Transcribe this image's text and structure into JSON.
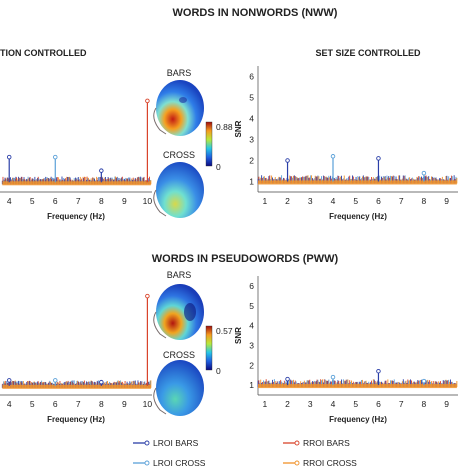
{
  "header_top": "WORDS IN NONWORDS (NWW)",
  "header_bottom": "WORDS IN PSEUDOWORDS (PWW)",
  "sub_left": "TION CONTROLLED",
  "sub_right": "SET SIZE CONTROLLED",
  "head_labels": {
    "bars": "BARS",
    "cross": "CROSS"
  },
  "colorbar_top": {
    "max": "0.88",
    "min": "0"
  },
  "colorbar_bottom": {
    "max": "0.57",
    "min": "0"
  },
  "legend": [
    {
      "label": "LROI BARS",
      "color": "#2b3fa8"
    },
    {
      "label": "RROI BARS",
      "color": "#d9442b"
    },
    {
      "label": "LROI CROSS",
      "color": "#5aa0d8"
    },
    {
      "label": "RROI CROSS",
      "color": "#f0922a"
    }
  ],
  "chart_data": [
    {
      "type": "line",
      "panel": "NWW - duration controlled",
      "title": "TION CONTROLLED",
      "xlabel": "Frequency (Hz)",
      "x_ticks": [
        4,
        5,
        6,
        7,
        8,
        9,
        10
      ],
      "xlim": [
        3.6,
        10.2
      ],
      "ylim": [
        0.5,
        7
      ],
      "baseline": 1.0,
      "peaks": [
        {
          "x": 4,
          "y": 2.3
        },
        {
          "x": 6,
          "y": 2.3
        },
        {
          "x": 8,
          "y": 1.6
        },
        {
          "x": 10,
          "y": 5.2
        }
      ]
    },
    {
      "type": "line",
      "panel": "NWW - set size controlled",
      "title": "SET SIZE CONTROLLED",
      "xlabel": "Frequency (Hz)",
      "ylabel": "SNR",
      "x_ticks": [
        1,
        2,
        3,
        4,
        5,
        6,
        7,
        8,
        9
      ],
      "y_ticks": [
        1,
        2,
        3,
        4,
        5,
        6
      ],
      "xlim": [
        0.7,
        9.5
      ],
      "ylim": [
        0.5,
        6.5
      ],
      "baseline": 1.0,
      "peaks": [
        {
          "x": 2,
          "y": 2.0
        },
        {
          "x": 4,
          "y": 2.2
        },
        {
          "x": 6,
          "y": 2.1
        },
        {
          "x": 8,
          "y": 1.4
        }
      ]
    },
    {
      "type": "line",
      "panel": "PWW - duration controlled",
      "xlabel": "Frequency (Hz)",
      "x_ticks": [
        4,
        5,
        6,
        7,
        8,
        9,
        10
      ],
      "xlim": [
        3.6,
        10.2
      ],
      "ylim": [
        0.5,
        7
      ],
      "baseline": 1.0,
      "peaks": [
        {
          "x": 4,
          "y": 1.3
        },
        {
          "x": 6,
          "y": 1.3
        },
        {
          "x": 8,
          "y": 1.2
        },
        {
          "x": 10,
          "y": 5.9
        }
      ]
    },
    {
      "type": "line",
      "panel": "PWW - set size controlled",
      "xlabel": "Frequency (Hz)",
      "ylabel": "SNR",
      "x_ticks": [
        1,
        2,
        3,
        4,
        5,
        6,
        7,
        8,
        9
      ],
      "y_ticks": [
        1,
        2,
        3,
        4,
        5,
        6
      ],
      "xlim": [
        0.7,
        9.5
      ],
      "ylim": [
        0.5,
        6.5
      ],
      "baseline": 1.0,
      "peaks": [
        {
          "x": 2,
          "y": 1.3
        },
        {
          "x": 4,
          "y": 1.4
        },
        {
          "x": 6,
          "y": 1.7
        },
        {
          "x": 8,
          "y": 1.2
        }
      ]
    }
  ]
}
